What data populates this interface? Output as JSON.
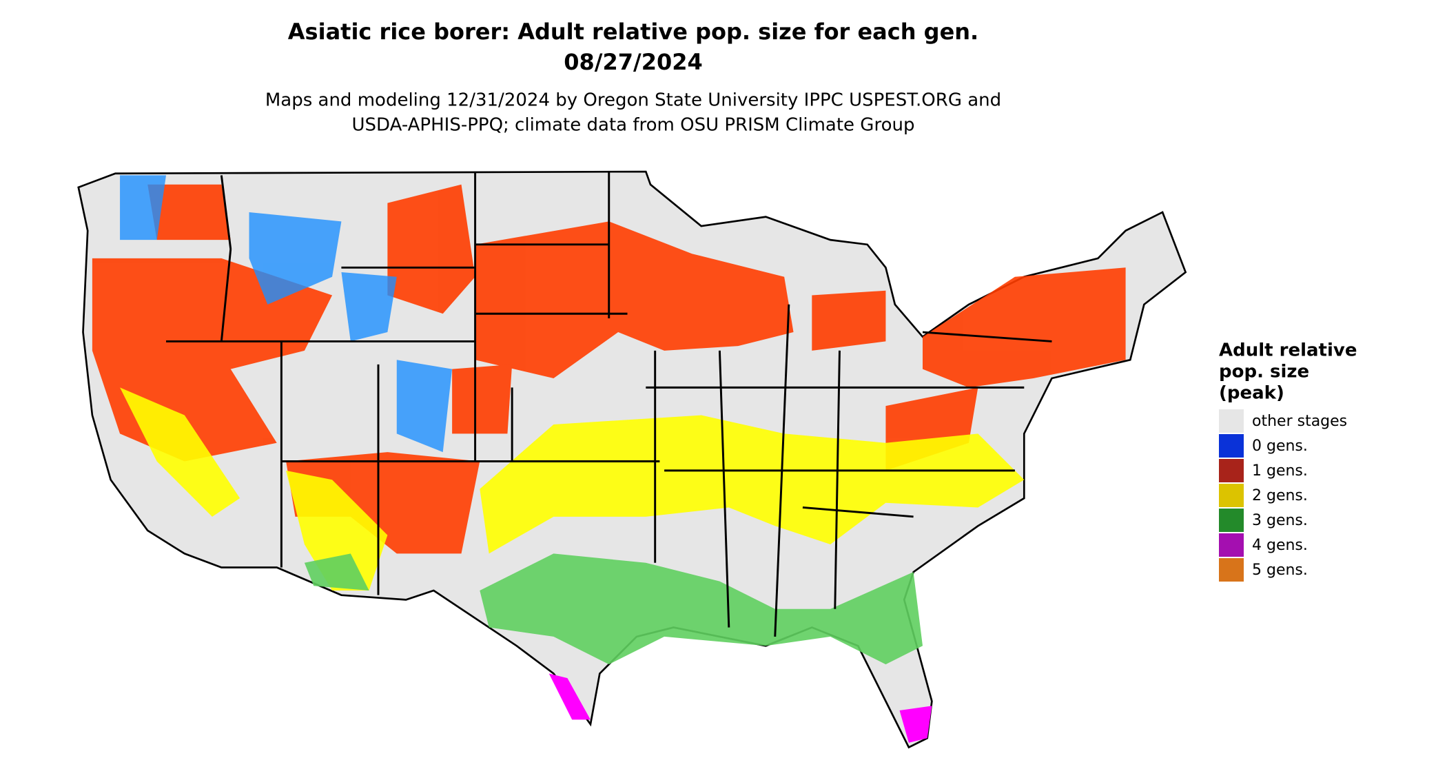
{
  "title": "Asiatic rice borer: Adult relative pop. size for each gen.",
  "date": "08/27/2024",
  "subtitle": [
    "Maps and modeling 12/31/2024 by Oregon State University IPPC USPEST.ORG and",
    "USDA-APHIS-PPQ; climate data from OSU PRISM Climate Group"
  ],
  "legend": {
    "title": [
      "Adult relative",
      "pop. size",
      "(peak)"
    ],
    "items": [
      {
        "label": "other stages",
        "color": "#e6e6e6"
      },
      {
        "label": "0 gens.",
        "color": "#0a32d8"
      },
      {
        "label": "1 gens.",
        "color": "#a8231a"
      },
      {
        "label": "2 gens.",
        "color": "#dcc300"
      },
      {
        "label": "3 gens.",
        "color": "#238a2a"
      },
      {
        "label": "4 gens.",
        "color": "#a40fb0"
      },
      {
        "label": "5 gens.",
        "color": "#d8741a"
      }
    ]
  }
}
